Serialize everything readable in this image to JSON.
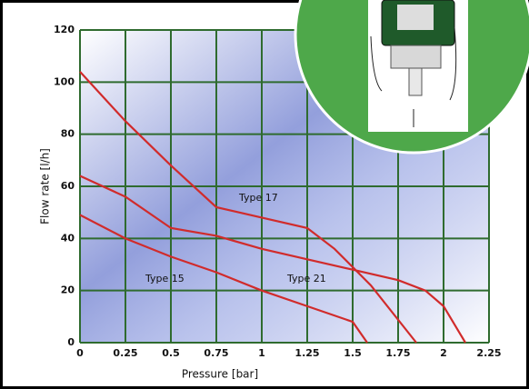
{
  "chart_data": {
    "type": "line",
    "x_label": "Pressure [bar]",
    "y_label": "Flow rate [l/h]",
    "xlim": [
      0,
      2.25
    ],
    "xticks": [
      0,
      0.25,
      0.5,
      0.75,
      1,
      1.25,
      1.5,
      1.75,
      2,
      2.25
    ],
    "ylim": [
      0,
      120
    ],
    "yticks": [
      0,
      20,
      40,
      60,
      80,
      100,
      120
    ],
    "grid": true,
    "grid_color": "#2f6b2f",
    "series": [
      {
        "name": "Type 17",
        "color": "#d12b2b",
        "x": [
          0,
          0.25,
          0.5,
          0.75,
          1,
          1.25,
          1.4,
          1.6,
          1.85
        ],
        "values": [
          104,
          85,
          68,
          52,
          48,
          44,
          36,
          22,
          0
        ]
      },
      {
        "name": "Type 21",
        "color": "#d12b2b",
        "x": [
          0,
          0.25,
          0.5,
          0.75,
          1,
          1.25,
          1.5,
          1.75,
          1.9,
          2.0,
          2.12
        ],
        "values": [
          64,
          56,
          44,
          41,
          36,
          32,
          28,
          24,
          20,
          14,
          0
        ]
      },
      {
        "name": "Type 15",
        "color": "#d12b2b",
        "x": [
          0,
          0.25,
          0.5,
          0.75,
          1,
          1.25,
          1.5,
          1.58
        ],
        "values": [
          49,
          40,
          33,
          27,
          20,
          14,
          8,
          0
        ]
      }
    ]
  }
}
